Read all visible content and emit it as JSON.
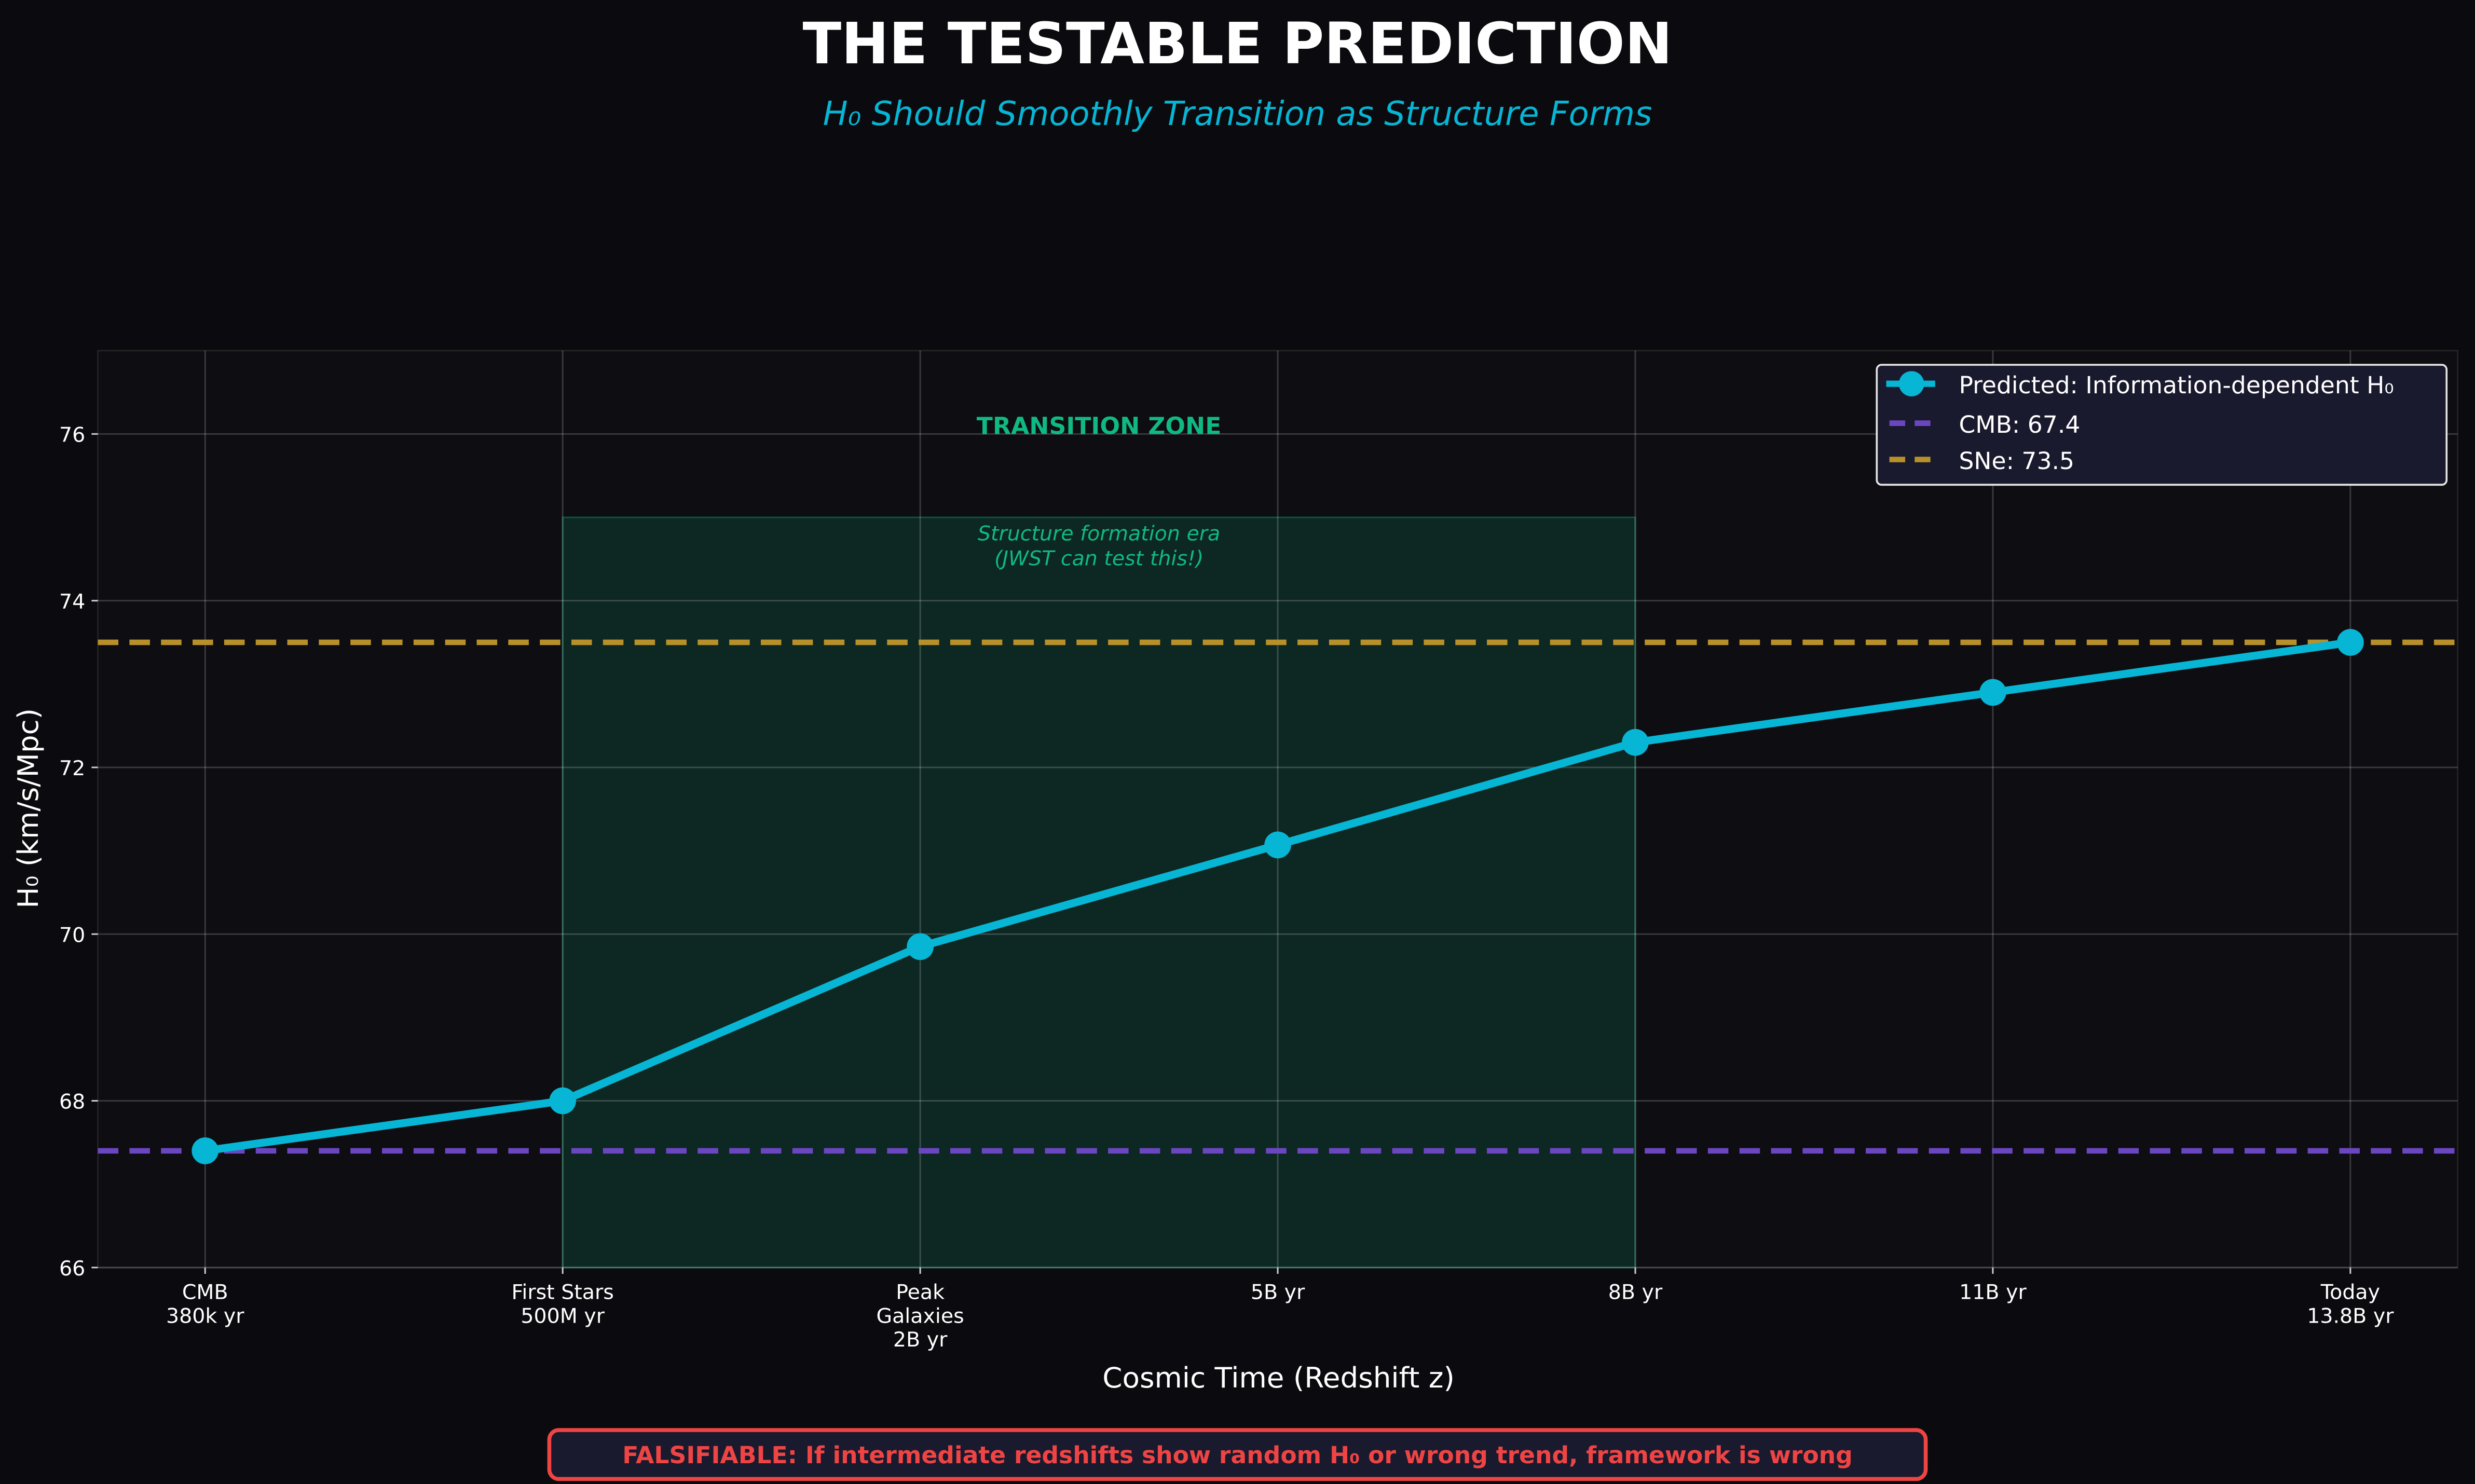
{
  "chart_data": {
    "type": "line",
    "title": "THE TESTABLE PREDICTION",
    "subtitle": "H₀ Should Smoothly Transition as Structure Forms",
    "xlabel": "Cosmic Time (Redshift z)",
    "ylabel": "H₀ (km/s/Mpc)",
    "categories": [
      [
        "CMB",
        "380k yr"
      ],
      [
        "First Stars",
        "500M yr"
      ],
      [
        "Peak",
        "Galaxies",
        "2B yr"
      ],
      [
        "5B yr"
      ],
      [
        "8B yr"
      ],
      [
        "11B yr"
      ],
      [
        "Today",
        "13.8B yr"
      ]
    ],
    "ylim": [
      66,
      77
    ],
    "yticks": [
      66,
      68,
      70,
      72,
      74,
      76
    ],
    "grid": true,
    "series": [
      {
        "name": "Predicted: Information-dependent H₀",
        "color": "#06b6d4",
        "values": [
          67.4,
          68.0,
          69.85,
          71.07,
          72.3,
          72.9,
          73.5
        ]
      }
    ],
    "reference_lines": [
      {
        "name": "CMB: 67.4",
        "value": 67.4,
        "color": "#6b46c1"
      },
      {
        "name": "SNe: 73.5",
        "value": 73.5,
        "color": "#b7902a"
      }
    ],
    "shaded_region": {
      "x_from": 1,
      "x_to": 4,
      "y_from": 66,
      "y_to": 75,
      "color": "#10b981"
    },
    "annotations": {
      "zone_title": "TRANSITION ZONE",
      "zone_note_1": "Structure formation era",
      "zone_note_2": "(JWST can test this!)"
    },
    "legend_position": "top-right",
    "footer": "FALSIFIABLE: If intermediate redshifts show random H₀ or wrong trend, framework is wrong"
  }
}
